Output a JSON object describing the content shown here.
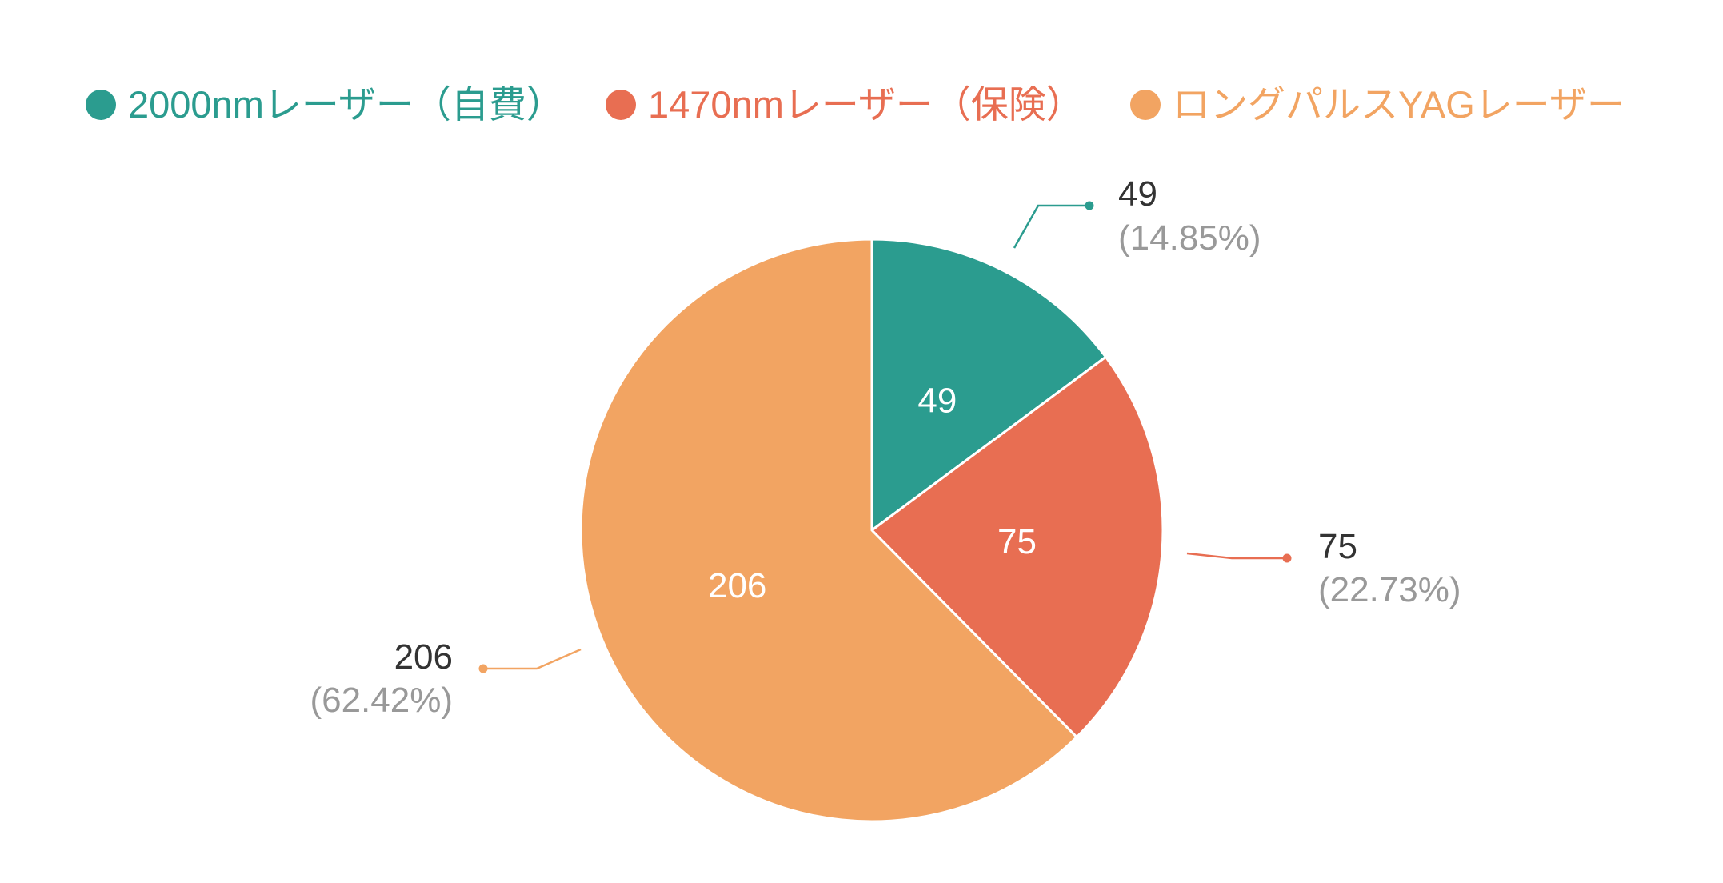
{
  "chart_data": {
    "type": "pie",
    "title": "",
    "legend_position": "top",
    "series": [
      {
        "name": "2000nmレーザー（自費）",
        "value": 49,
        "percent_label": "(14.85%)",
        "color": "#2b9c8f"
      },
      {
        "name": "1470nmレーザー（保険）",
        "value": 75,
        "percent_label": "(22.73%)",
        "color": "#e86e52"
      },
      {
        "name": "ロングパルスYAGレーザー",
        "value": 206,
        "percent_label": "(62.42%)",
        "color": "#f2a462"
      }
    ]
  }
}
